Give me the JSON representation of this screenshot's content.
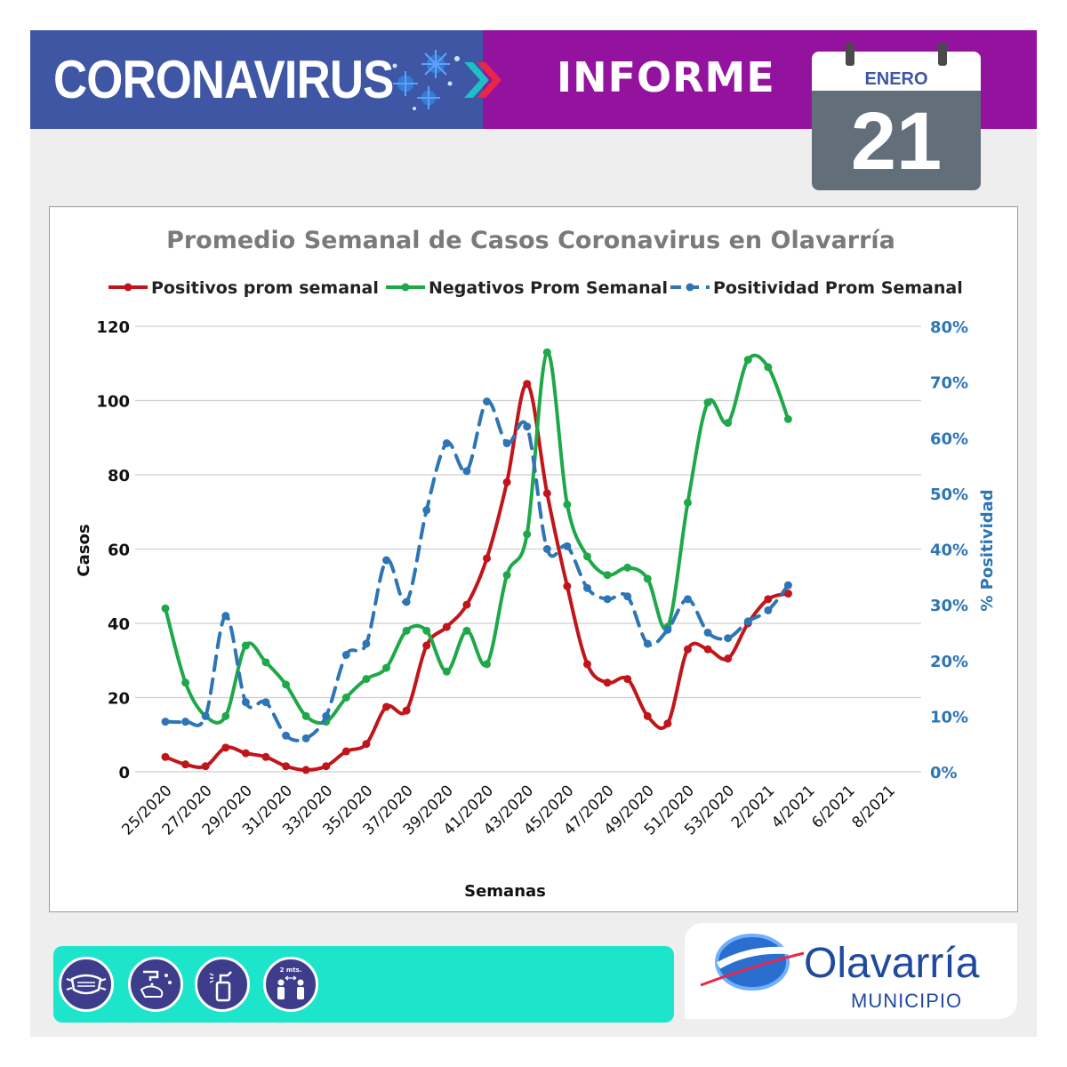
{
  "header": {
    "title": "CORONAVIRUS",
    "subtitle": "INFORME",
    "month": "ENERO",
    "day": "21"
  },
  "colors": {
    "header_left": "#3e56a4",
    "header_right": "#93139f",
    "positivos": "#c0151b",
    "negativos": "#1fa84a",
    "positividad": "#2e75b6",
    "footer_bar": "#1de5cc"
  },
  "footer": {
    "icons": [
      "mask-icon",
      "handwash-icon",
      "sanitizer-icon",
      "distance-icon"
    ],
    "distance_label": "2 mts.",
    "logo_name": "Olavarría",
    "logo_sub": "MUNICIPIO"
  },
  "chart_data": {
    "type": "line",
    "title": "Promedio Semanal de Casos Coronavirus en Olavarría",
    "xlabel": "Semanas",
    "ylabel": "Casos",
    "y2label": "% Positividad",
    "ylim": [
      0,
      120
    ],
    "y2lim": [
      0,
      80
    ],
    "yticks": [
      0,
      20,
      40,
      60,
      80,
      100,
      120
    ],
    "y2ticks": [
      "0%",
      "10%",
      "20%",
      "30%",
      "40%",
      "50%",
      "60%",
      "70%",
      "80%"
    ],
    "grid": true,
    "legend": "top",
    "x_tick_labels": [
      "25/2020",
      "27/2020",
      "29/2020",
      "31/2020",
      "33/2020",
      "35/2020",
      "37/2020",
      "39/2020",
      "41/2020",
      "43/2020",
      "45/2020",
      "47/2020",
      "49/2020",
      "51/2020",
      "53/2020",
      "2/2021",
      "4/2021",
      "6/2021",
      "8/2021"
    ],
    "x": [
      "25/2020",
      "26/2020",
      "27/2020",
      "28/2020",
      "29/2020",
      "30/2020",
      "31/2020",
      "32/2020",
      "33/2020",
      "34/2020",
      "35/2020",
      "36/2020",
      "37/2020",
      "38/2020",
      "39/2020",
      "40/2020",
      "41/2020",
      "42/2020",
      "43/2020",
      "44/2020",
      "45/2020",
      "46/2020",
      "47/2020",
      "48/2020",
      "49/2020",
      "50/2020",
      "51/2020",
      "52/2020",
      "53/2020",
      "1/2021",
      "2/2021",
      "3/2021",
      "4/2021",
      "5/2021",
      "6/2021",
      "7/2021",
      "8/2021",
      "9/2021"
    ],
    "series": [
      {
        "name": "Positivos prom semanal",
        "axis": "left",
        "values": [
          4,
          2,
          1.5,
          6.5,
          5,
          4,
          1.5,
          0.5,
          1.5,
          5.5,
          7.5,
          17.5,
          16.5,
          34,
          39,
          45,
          57.5,
          78,
          104.5,
          75,
          50,
          29,
          24,
          25,
          15,
          13,
          33,
          33,
          30.5,
          40,
          46.5,
          48,
          null,
          null,
          null,
          null,
          null,
          null
        ]
      },
      {
        "name": "Negativos Prom Semanal",
        "axis": "left",
        "values": [
          44,
          24,
          15,
          15,
          34,
          29.5,
          23.5,
          15,
          13.5,
          20,
          25,
          28,
          38,
          38,
          27,
          38,
          29,
          53,
          64,
          113,
          72,
          58,
          53,
          55,
          52,
          39,
          72.5,
          99.5,
          94,
          111,
          109,
          95,
          null,
          null,
          null,
          null,
          null,
          null
        ]
      },
      {
        "name": "Positividad Prom Semanal",
        "axis": "right",
        "dashed": true,
        "values": [
          9,
          9,
          10,
          28,
          12.5,
          12.5,
          6.5,
          6,
          10,
          21,
          23,
          38,
          30.5,
          47,
          59,
          54,
          66.5,
          59,
          62,
          40,
          40.5,
          33,
          31,
          31.5,
          23,
          25.5,
          31,
          25,
          24,
          27,
          29,
          33.5,
          null,
          null,
          null,
          null,
          null,
          null
        ]
      }
    ]
  }
}
